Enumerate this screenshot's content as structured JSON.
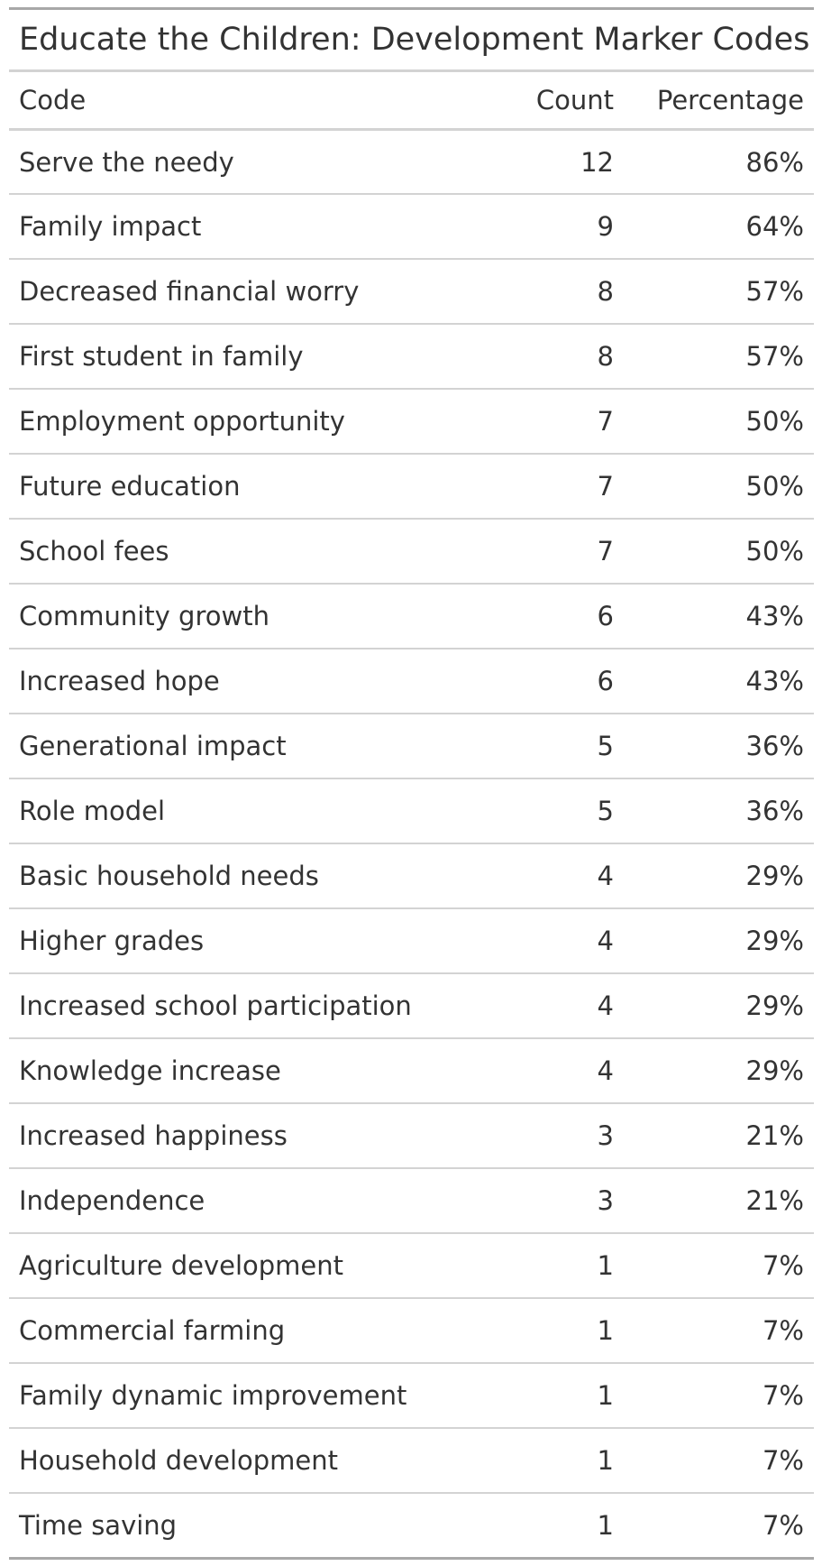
{
  "table": {
    "title": "Educate the Children: Development Marker Codes",
    "headers": {
      "code": "Code",
      "count": "Count",
      "percentage": "Percentage"
    },
    "rows": [
      {
        "code": "Serve the needy",
        "count": "12",
        "percentage": "86%"
      },
      {
        "code": "Family impact",
        "count": "9",
        "percentage": "64%"
      },
      {
        "code": "Decreased financial worry",
        "count": "8",
        "percentage": "57%"
      },
      {
        "code": "First student in family",
        "count": "8",
        "percentage": "57%"
      },
      {
        "code": "Employment opportunity",
        "count": "7",
        "percentage": "50%"
      },
      {
        "code": "Future education",
        "count": "7",
        "percentage": "50%"
      },
      {
        "code": "School fees",
        "count": "7",
        "percentage": "50%"
      },
      {
        "code": "Community growth",
        "count": "6",
        "percentage": "43%"
      },
      {
        "code": "Increased hope",
        "count": "6",
        "percentage": "43%"
      },
      {
        "code": "Generational impact",
        "count": "5",
        "percentage": "36%"
      },
      {
        "code": "Role model",
        "count": "5",
        "percentage": "36%"
      },
      {
        "code": "Basic household needs",
        "count": "4",
        "percentage": "29%"
      },
      {
        "code": "Higher grades",
        "count": "4",
        "percentage": "29%"
      },
      {
        "code": "Increased school participation",
        "count": "4",
        "percentage": "29%"
      },
      {
        "code": "Knowledge increase",
        "count": "4",
        "percentage": "29%"
      },
      {
        "code": "Increased happiness",
        "count": "3",
        "percentage": "21%"
      },
      {
        "code": "Independence",
        "count": "3",
        "percentage": "21%"
      },
      {
        "code": "Agriculture development",
        "count": "1",
        "percentage": "7%"
      },
      {
        "code": "Commercial farming",
        "count": "1",
        "percentage": "7%"
      },
      {
        "code": "Family dynamic improvement",
        "count": "1",
        "percentage": "7%"
      },
      {
        "code": "Household development",
        "count": "1",
        "percentage": "7%"
      },
      {
        "code": "Time saving",
        "count": "1",
        "percentage": "7%"
      }
    ]
  }
}
